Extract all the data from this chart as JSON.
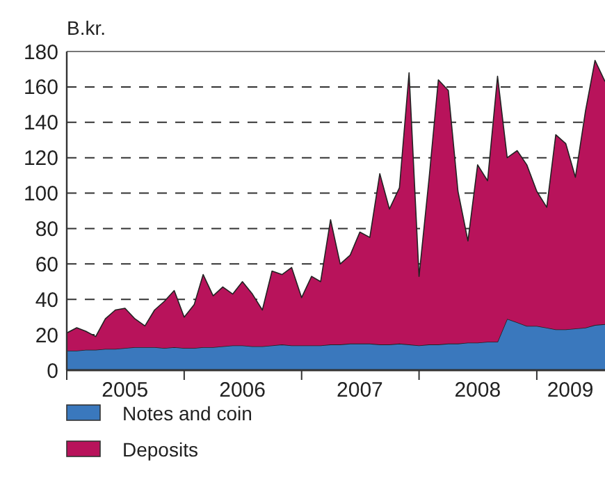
{
  "chart_data": {
    "type": "area",
    "stacked": true,
    "ylabel": "B.kr.",
    "x": [
      "2005-01",
      "2005-02",
      "2005-03",
      "2005-04",
      "2005-05",
      "2005-06",
      "2005-07",
      "2005-08",
      "2005-09",
      "2005-10",
      "2005-11",
      "2005-12",
      "2006-01",
      "2006-02",
      "2006-03",
      "2006-04",
      "2006-05",
      "2006-06",
      "2006-07",
      "2006-08",
      "2006-09",
      "2006-10",
      "2006-11",
      "2006-12",
      "2007-01",
      "2007-02",
      "2007-03",
      "2007-04",
      "2007-05",
      "2007-06",
      "2007-07",
      "2007-08",
      "2007-09",
      "2007-10",
      "2007-11",
      "2007-12",
      "2008-01",
      "2008-02",
      "2008-03",
      "2008-04",
      "2008-05",
      "2008-06",
      "2008-07",
      "2008-08",
      "2008-09",
      "2008-10",
      "2008-11",
      "2008-12",
      "2009-01",
      "2009-02",
      "2009-03",
      "2009-04",
      "2009-05",
      "2009-06",
      "2009-07",
      "2009-08"
    ],
    "series": [
      {
        "name": "Notes and coin",
        "color": "#3a78bd",
        "values": [
          11,
          11,
          11.5,
          11.5,
          12,
          12,
          12.5,
          13,
          13,
          13,
          12.5,
          13,
          12.5,
          12.5,
          13,
          13,
          13.5,
          14,
          14,
          13.5,
          13.5,
          14,
          14.5,
          14,
          14,
          14,
          14,
          14.5,
          14.5,
          15,
          15,
          15,
          14.5,
          14.5,
          15,
          14.5,
          14,
          14.5,
          14.5,
          15,
          15,
          15.5,
          15.5,
          16,
          16,
          29,
          27,
          25,
          25,
          24,
          23,
          23,
          23.5,
          24,
          25.5,
          26
        ]
      },
      {
        "name": "Deposits",
        "color": "#b8135b",
        "values": [
          10,
          13,
          10.5,
          7.5,
          17,
          22,
          22.5,
          16,
          12,
          21,
          26.5,
          32,
          17.5,
          24.5,
          41,
          29,
          33.5,
          29,
          36,
          29.5,
          20.5,
          42,
          39.5,
          44,
          27,
          39,
          36,
          70.5,
          45.5,
          50,
          63,
          60,
          96.5,
          76.5,
          88,
          153.5,
          39,
          93.5,
          149.5,
          143,
          86,
          57.5,
          100.5,
          91,
          150,
          91,
          97,
          91,
          76,
          68,
          110,
          105,
          85.5,
          122,
          149.5,
          137
        ]
      }
    ],
    "xlim": [
      "2005-01",
      "2009-08"
    ],
    "xticks": [
      {
        "value": "2005-01",
        "label": null
      },
      {
        "value": "2005-07",
        "label": "2005"
      },
      {
        "value": "2006-01",
        "label": null
      },
      {
        "value": "2006-07",
        "label": "2006"
      },
      {
        "value": "2007-01",
        "label": null
      },
      {
        "value": "2007-07",
        "label": "2007"
      },
      {
        "value": "2008-01",
        "label": null
      },
      {
        "value": "2008-07",
        "label": "2008"
      },
      {
        "value": "2009-01",
        "label": null
      },
      {
        "value": "2009-04-15",
        "label": "2009"
      }
    ],
    "ylim": [
      0,
      180
    ],
    "yticks": [
      0,
      20,
      40,
      60,
      80,
      100,
      120,
      140,
      160,
      180
    ],
    "grid": "y",
    "legend": "bottom"
  }
}
